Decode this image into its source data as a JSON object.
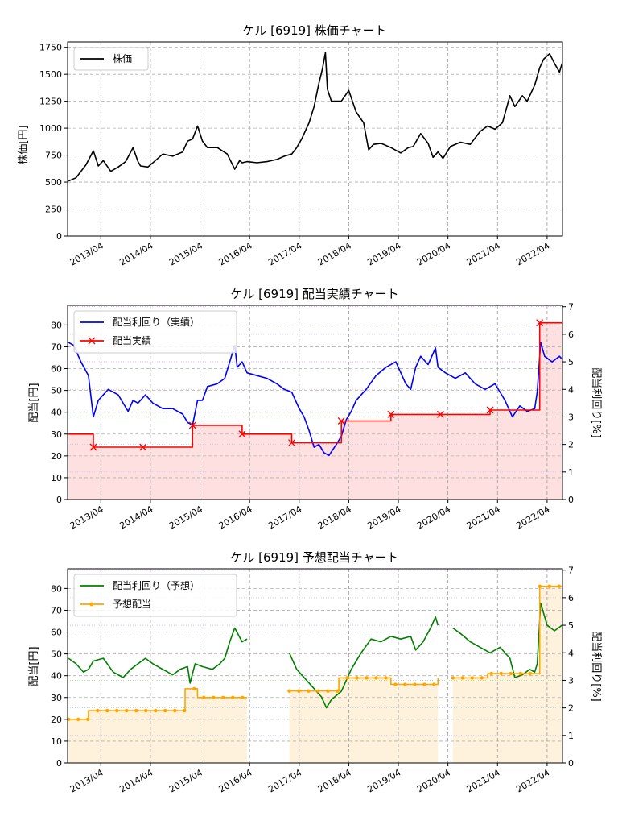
{
  "chart_data": [
    {
      "type": "line",
      "title": "ケル [6919]  株価チャート",
      "ylabel": "株価[円]",
      "ylim": [
        0,
        1800
      ],
      "yticks": [
        0,
        250,
        500,
        750,
        1000,
        1250,
        1500,
        1750
      ],
      "xticks": [
        "2013/04",
        "2014/04",
        "2015/04",
        "2016/04",
        "2017/04",
        "2018/04",
        "2019/04",
        "2020/04",
        "2021/04",
        "2022/04"
      ],
      "grid": true,
      "legend_position": "top-left",
      "series": [
        {
          "name": "株価",
          "color": "#000000",
          "x": [
            2012.6,
            2012.75,
            2012.95,
            2013.1,
            2013.2,
            2013.3,
            2013.45,
            2013.6,
            2013.75,
            2013.9,
            2014.0,
            2014.05,
            2014.2,
            2014.35,
            2014.5,
            2014.7,
            2014.9,
            2015.0,
            2015.1,
            2015.2,
            2015.3,
            2015.4,
            2015.6,
            2015.8,
            2015.95,
            2016.05,
            2016.1,
            2016.2,
            2016.4,
            2016.6,
            2016.8,
            2016.95,
            2017.1,
            2017.2,
            2017.3,
            2017.45,
            2017.55,
            2017.65,
            2017.72,
            2017.78,
            2017.82,
            2017.9,
            2018.1,
            2018.25,
            2018.4,
            2018.55,
            2018.65,
            2018.75,
            2018.9,
            2019.1,
            2019.3,
            2019.45,
            2019.55,
            2019.7,
            2019.85,
            2019.95,
            2020.05,
            2020.15,
            2020.3,
            2020.5,
            2020.7,
            2020.9,
            2021.05,
            2021.2,
            2021.35,
            2021.5,
            2021.6,
            2021.75,
            2021.85,
            2022.0,
            2022.1,
            2022.18,
            2022.3,
            2022.4,
            2022.5,
            2022.55
          ],
          "values": [
            510,
            540,
            660,
            790,
            650,
            700,
            600,
            640,
            690,
            820,
            690,
            650,
            640,
            700,
            760,
            740,
            780,
            880,
            900,
            1020,
            880,
            820,
            820,
            760,
            620,
            700,
            680,
            690,
            680,
            690,
            710,
            740,
            760,
            820,
            900,
            1050,
            1200,
            1420,
            1550,
            1700,
            1360,
            1250,
            1250,
            1350,
            1150,
            1050,
            800,
            850,
            860,
            820,
            770,
            820,
            830,
            950,
            860,
            730,
            780,
            720,
            830,
            870,
            850,
            970,
            1020,
            990,
            1050,
            1300,
            1200,
            1300,
            1250,
            1400,
            1560,
            1640,
            1690,
            1600,
            1520,
            1600
          ]
        }
      ]
    },
    {
      "type": "line",
      "title": "ケル [6919]  配当実績チャート",
      "ylabel": "配当[円]",
      "ylabel_right": "配当利回り[%]",
      "ylim": [
        0,
        89
      ],
      "ylim_right": [
        0,
        7.05
      ],
      "yticks": [
        0,
        10,
        20,
        30,
        40,
        50,
        60,
        70,
        80
      ],
      "yticks_right": [
        0,
        1,
        2,
        3,
        4,
        5,
        6,
        7
      ],
      "xticks": [
        "2013/04",
        "2014/04",
        "2015/04",
        "2016/04",
        "2017/04",
        "2018/04",
        "2019/04",
        "2020/04",
        "2021/04",
        "2022/04"
      ],
      "grid": true,
      "legend_position": "top-left",
      "series": [
        {
          "name": "配当利回り（実績）",
          "color": "#0000ff",
          "axis": "right",
          "x": [
            2012.6,
            2012.7,
            2012.85,
            2013.0,
            2013.1,
            2013.2,
            2013.4,
            2013.6,
            2013.8,
            2013.9,
            2014.0,
            2014.15,
            2014.3,
            2014.5,
            2014.7,
            2014.9,
            2015.0,
            2015.1,
            2015.2,
            2015.3,
            2015.4,
            2015.6,
            2015.75,
            2015.85,
            2015.95,
            2016.0,
            2016.1,
            2016.2,
            2016.4,
            2016.6,
            2016.8,
            2016.95,
            2017.1,
            2017.25,
            2017.35,
            2017.45,
            2017.55,
            2017.65,
            2017.75,
            2017.85,
            2018.0,
            2018.1,
            2018.2,
            2018.3,
            2018.4,
            2018.6,
            2018.8,
            2019.0,
            2019.2,
            2019.4,
            2019.5,
            2019.6,
            2019.7,
            2019.85,
            2020.0,
            2020.05,
            2020.2,
            2020.4,
            2020.6,
            2020.8,
            2021.0,
            2021.2,
            2021.4,
            2021.55,
            2021.7,
            2021.85,
            2022.0,
            2022.05,
            2022.12,
            2022.2,
            2022.35,
            2022.5,
            2022.55
          ],
          "values": [
            5.7,
            5.6,
            5.0,
            4.5,
            3.0,
            3.6,
            4.0,
            3.8,
            3.2,
            3.6,
            3.5,
            3.8,
            3.5,
            3.3,
            3.3,
            3.1,
            2.8,
            2.7,
            3.6,
            3.6,
            4.1,
            4.2,
            4.4,
            5.0,
            5.6,
            4.8,
            5.0,
            4.6,
            4.5,
            4.4,
            4.2,
            4.0,
            3.9,
            3.3,
            3.0,
            2.5,
            1.9,
            2.0,
            1.7,
            1.6,
            2.0,
            2.3,
            2.9,
            3.2,
            3.6,
            4.0,
            4.5,
            4.8,
            5.0,
            4.2,
            4.0,
            4.8,
            5.2,
            4.9,
            5.5,
            4.8,
            4.6,
            4.4,
            4.6,
            4.2,
            4.0,
            4.2,
            3.6,
            3.0,
            3.4,
            3.2,
            3.3,
            3.9,
            5.7,
            5.2,
            5.0,
            5.2,
            5.1
          ]
        },
        {
          "name": "配当実績",
          "color": "#ff0000",
          "axis": "left",
          "step": true,
          "x": [
            2012.6,
            2013.1,
            2014.1,
            2015.1,
            2016.1,
            2017.1,
            2018.1,
            2019.1,
            2020.1,
            2021.1,
            2022.1,
            2022.55
          ],
          "values": [
            30,
            24,
            24,
            34,
            30,
            26,
            36,
            39,
            39,
            41,
            81,
            81
          ]
        }
      ]
    },
    {
      "type": "line",
      "title": "ケル [6919]  予想配当チャート",
      "ylabel": "配当[円]",
      "ylabel_right": "配当利回り[%]",
      "ylim": [
        0,
        89
      ],
      "ylim_right": [
        0,
        7.05
      ],
      "yticks": [
        0,
        10,
        20,
        30,
        40,
        50,
        60,
        70,
        80
      ],
      "yticks_right": [
        0,
        1,
        2,
        3,
        4,
        5,
        6,
        7
      ],
      "xticks": [
        "2013/04",
        "2014/04",
        "2015/04",
        "2016/04",
        "2017/04",
        "2018/04",
        "2019/04",
        "2020/04",
        "2021/04",
        "2022/04"
      ],
      "grid": true,
      "legend_position": "top-left",
      "series": [
        {
          "name": "配当利回り（予想）",
          "color": "#008000",
          "axis": "right",
          "segments": [
            {
              "x": [
                2012.6,
                2012.75,
                2012.9,
                2013.0,
                2013.1,
                2013.3,
                2013.5,
                2013.7,
                2013.85,
                2014.0,
                2014.15,
                2014.3,
                2014.5,
                2014.7,
                2014.85,
                2015.0,
                2015.05,
                2015.15,
                2015.3,
                2015.5,
                2015.65,
                2015.75,
                2015.85,
                2015.95,
                2016.1,
                2016.2
              ],
              "values": [
                3.8,
                3.6,
                3.3,
                3.4,
                3.7,
                3.8,
                3.3,
                3.1,
                3.4,
                3.6,
                3.8,
                3.6,
                3.4,
                3.2,
                3.4,
                3.5,
                2.9,
                3.6,
                3.5,
                3.4,
                3.6,
                3.8,
                4.4,
                4.9,
                4.4,
                4.5
              ]
            },
            {
              "x": [
                2017.05,
                2017.2,
                2017.4,
                2017.55,
                2017.7,
                2017.8,
                2017.9,
                2018.1,
                2018.3,
                2018.5,
                2018.7,
                2018.9,
                2019.1,
                2019.3,
                2019.5,
                2019.6,
                2019.75,
                2019.9,
                2020.0,
                2020.05
              ],
              "values": [
                4.0,
                3.4,
                3.0,
                2.7,
                2.4,
                2.0,
                2.3,
                2.6,
                3.4,
                4.0,
                4.5,
                4.4,
                4.6,
                4.5,
                4.6,
                4.1,
                4.4,
                4.9,
                5.3,
                5.0
              ]
            },
            {
              "x": [
                2020.35,
                2020.5,
                2020.7,
                2020.9,
                2021.1,
                2021.3,
                2021.5,
                2021.6,
                2021.75,
                2021.9,
                2022.0,
                2022.05,
                2022.12,
                2022.25,
                2022.4,
                2022.55
              ],
              "values": [
                4.9,
                4.7,
                4.4,
                4.2,
                4.0,
                4.2,
                3.8,
                3.1,
                3.2,
                3.4,
                3.3,
                3.6,
                5.8,
                5.0,
                4.8,
                5.0
              ]
            }
          ]
        },
        {
          "name": "予想配当",
          "color": "#ffa500",
          "axis": "left",
          "step": true,
          "segments": [
            {
              "x": [
                2012.6,
                2012.95,
                2013.0,
                2014.9,
                2014.95,
                2015.1,
                2015.2,
                2016.2
              ],
              "values": [
                20,
                20,
                24,
                24,
                34,
                34,
                30,
                30
              ]
            },
            {
              "x": [
                2017.05,
                2017.9,
                2018.05,
                2019.05,
                2019.1,
                2019.95,
                2020.05
              ],
              "values": [
                33,
                33,
                39,
                39,
                36,
                36,
                39
              ]
            },
            {
              "x": [
                2020.35,
                2021.0,
                2021.05,
                2021.9,
                2022.1,
                2022.55
              ],
              "values": [
                39,
                39,
                41,
                41,
                81,
                81
              ]
            }
          ]
        }
      ]
    }
  ]
}
